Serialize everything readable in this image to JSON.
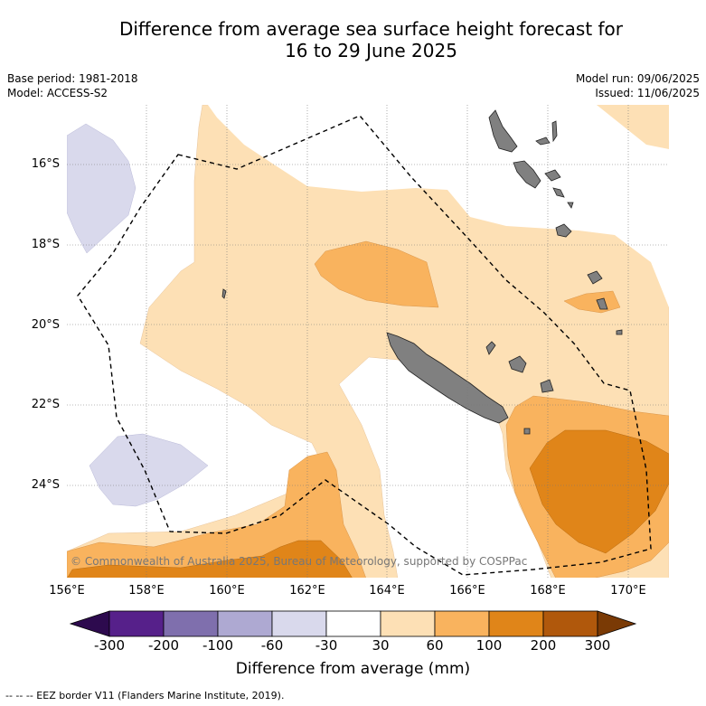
{
  "title_line1": "Difference from average sea surface height forecast for",
  "title_line2": "16 to 29 June 2025",
  "meta": {
    "base_period": "Base period: 1981-2018",
    "model": "Model: ACCESS-S2",
    "model_run": "Model run: 09/06/2025",
    "issued": "Issued: 11/06/2025"
  },
  "latitudes": [
    "16°S",
    "18°S",
    "20°S",
    "22°S",
    "24°S"
  ],
  "longitudes": [
    "156°E",
    "158°E",
    "160°E",
    "162°E",
    "164°E",
    "166°E",
    "168°E",
    "170°E"
  ],
  "copyright": "© Commonwealth of Australia 2025, Bureau of Meteorology, supported by COSPPac",
  "colorbar": {
    "ticks": [
      "-300",
      "-200",
      "-100",
      "-60",
      "-30",
      "30",
      "60",
      "100",
      "200",
      "300"
    ],
    "colors": [
      "#2d0a4e",
      "#56208a",
      "#7f6fad",
      "#aea9d2",
      "#d9d9ec",
      "#ffffff",
      "#fde0b5",
      "#f9b35e",
      "#e08519",
      "#b0580c",
      "#7a3a05"
    ],
    "title": "Difference from average (mm)"
  },
  "footnote": "--  --  -- EEZ border V11 (Flanders Marine Institute, 2019).",
  "map_colors": {
    "land": "#808080",
    "ocean_zero": "#ffffff",
    "grid": "#777777",
    "eez": "#000000"
  }
}
